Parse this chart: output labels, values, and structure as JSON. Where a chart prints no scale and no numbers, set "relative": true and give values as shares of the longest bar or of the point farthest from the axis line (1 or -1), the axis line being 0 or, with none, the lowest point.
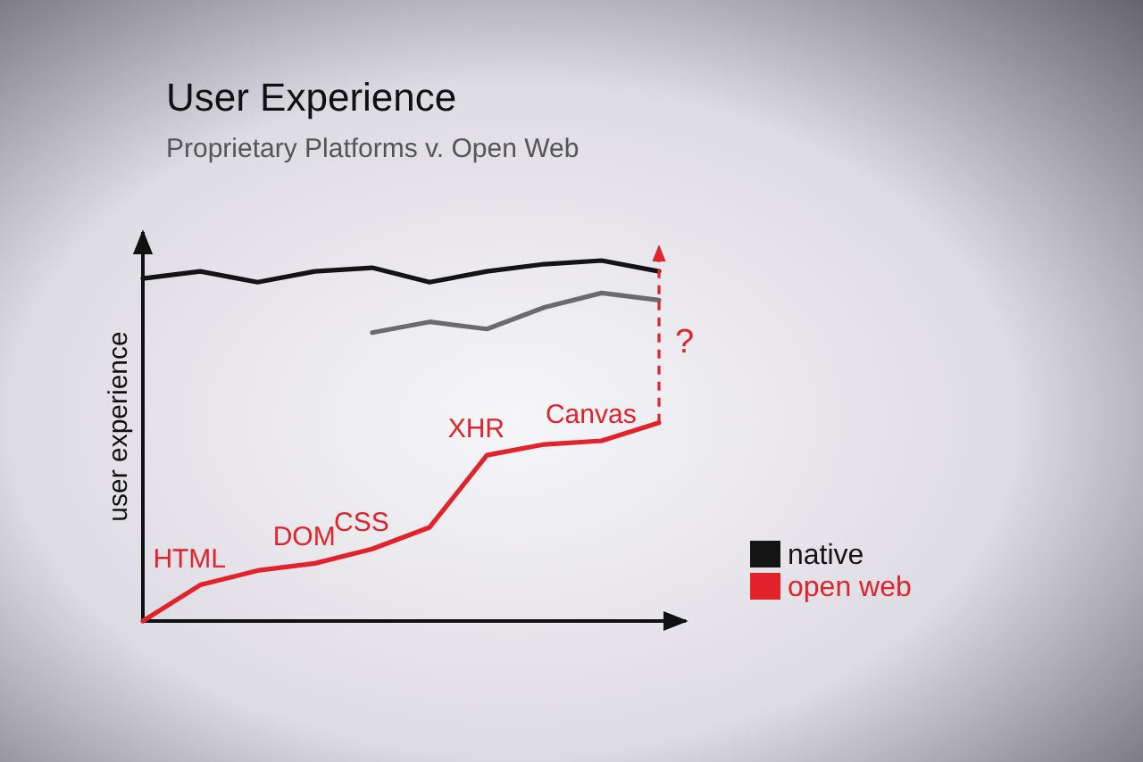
{
  "chart_data": {
    "type": "line",
    "relative": true,
    "title": "User Experience",
    "subtitle": "Proprietary Platforms v. Open Web",
    "ylabel": "user experience",
    "annotations": [
      {
        "text": "HTML",
        "y": 0.1
      },
      {
        "text": "DOM",
        "y": 0.16
      },
      {
        "text": "CSS",
        "y": 0.2
      },
      {
        "text": "XHR",
        "y": 0.46
      },
      {
        "text": "Canvas",
        "y": 0.5
      },
      "?"
    ],
    "categories": [
      null,
      null,
      null,
      null,
      null,
      null,
      null,
      null,
      null,
      null
    ],
    "series": [
      {
        "name": "native",
        "color": "#141414",
        "values": [
          0.95,
          0.97,
          0.94,
          0.97,
          0.98,
          0.94,
          0.97,
          0.99,
          1.0,
          0.97
        ]
      },
      {
        "color": "#6b6b6e",
        "values": [
          null,
          null,
          null,
          null,
          0.8,
          0.83,
          0.81,
          0.87,
          0.91,
          0.89
        ]
      },
      {
        "name": "open web",
        "color": "#e3232b",
        "values": [
          0,
          0.1,
          0.14,
          0.16,
          0.2,
          0.26,
          0.46,
          0.49,
          0.5,
          0.55
        ]
      }
    ],
    "legend": "bottom right"
  }
}
